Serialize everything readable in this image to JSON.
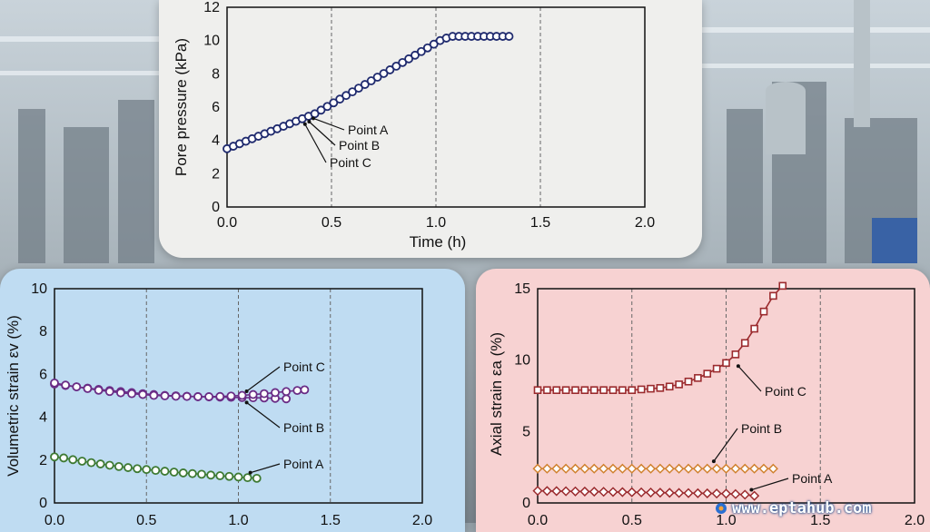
{
  "watermark": {
    "text": "www.eptahub.com"
  },
  "colors": {
    "navy": "#1f2a6e",
    "purple": "#6a2d86",
    "green": "#3e7a33",
    "darkred": "#9b2b2e",
    "orange": "#d0802d"
  },
  "chart_data": [
    {
      "type": "line",
      "title": "",
      "xlabel": "Time (h)",
      "ylabel": "Pore pressure (kPa)",
      "xlim": [
        0,
        2.0
      ],
      "ylim": [
        0,
        12
      ],
      "xticks": [
        "0.0",
        "0.5",
        "1.0",
        "1.5",
        "2.0"
      ],
      "yticks": [
        "0",
        "2",
        "4",
        "6",
        "8",
        "10",
        "12"
      ],
      "grid": "vertical dashed",
      "series": [
        {
          "marker": "circle",
          "color": "#1f2a6e",
          "x": [
            0.0,
            0.03,
            0.06,
            0.09,
            0.12,
            0.15,
            0.18,
            0.21,
            0.24,
            0.27,
            0.3,
            0.33,
            0.36,
            0.39,
            0.42,
            0.45,
            0.48,
            0.51,
            0.54,
            0.57,
            0.6,
            0.63,
            0.66,
            0.69,
            0.72,
            0.75,
            0.78,
            0.81,
            0.84,
            0.87,
            0.9,
            0.93,
            0.96,
            0.99,
            1.02,
            1.05,
            1.08,
            1.11,
            1.14,
            1.17,
            1.2,
            1.23,
            1.26,
            1.29,
            1.32,
            1.35
          ],
          "y": [
            3.5,
            3.65,
            3.8,
            3.95,
            4.1,
            4.25,
            4.4,
            4.55,
            4.7,
            4.85,
            5.0,
            5.15,
            5.3,
            5.45,
            5.6,
            5.82,
            6.04,
            6.26,
            6.48,
            6.7,
            6.92,
            7.14,
            7.36,
            7.58,
            7.8,
            8.02,
            8.24,
            8.46,
            8.68,
            8.9,
            9.12,
            9.34,
            9.56,
            9.78,
            10.0,
            10.15,
            10.25,
            10.25,
            10.25,
            10.25,
            10.25,
            10.25,
            10.25,
            10.25,
            10.25,
            10.25
          ]
        }
      ],
      "annotations": [
        {
          "text": "Point A",
          "x": 0.4,
          "y": 5.6
        },
        {
          "text": "Point B",
          "x": 0.38,
          "y": 5.4
        },
        {
          "text": "Point C",
          "x": 0.36,
          "y": 5.25
        }
      ]
    },
    {
      "type": "line",
      "title": "",
      "xlabel": "",
      "ylabel": "Volumetric strain εv (%)",
      "xlim": [
        0,
        2.0
      ],
      "ylim": [
        0,
        10
      ],
      "xticks": [
        "0.0",
        "0.5",
        "1.0",
        "1.5",
        "2.0"
      ],
      "yticks": [
        "0",
        "2",
        "4",
        "6",
        "8",
        "10"
      ],
      "grid": "vertical dashed",
      "series": [
        {
          "marker": "circle",
          "color": "#3e7a33",
          "x": [
            0.0,
            0.05,
            0.1,
            0.15,
            0.2,
            0.25,
            0.3,
            0.35,
            0.4,
            0.45,
            0.5,
            0.55,
            0.6,
            0.65,
            0.7,
            0.75,
            0.8,
            0.85,
            0.9,
            0.95,
            1.0,
            1.05,
            1.1
          ],
          "y": [
            2.15,
            2.1,
            2.02,
            1.95,
            1.88,
            1.82,
            1.76,
            1.7,
            1.65,
            1.6,
            1.56,
            1.52,
            1.48,
            1.44,
            1.4,
            1.37,
            1.34,
            1.3,
            1.27,
            1.24,
            1.21,
            1.18,
            1.15
          ]
        },
        {
          "marker": "circle",
          "color": "#6a2d86",
          "x": [
            0.0,
            0.06,
            0.12,
            0.18,
            0.24,
            0.3,
            0.36,
            0.42,
            0.48,
            0.54,
            0.6,
            0.66,
            0.72,
            0.78,
            0.84,
            0.9,
            0.96,
            1.02,
            1.08,
            1.14,
            1.2,
            1.26
          ],
          "y": [
            5.55,
            5.48,
            5.42,
            5.36,
            5.3,
            5.25,
            5.2,
            5.15,
            5.1,
            5.06,
            5.02,
            5.0,
            4.98,
            4.96,
            4.95,
            4.94,
            4.93,
            4.92,
            4.91,
            4.9,
            4.88,
            4.86
          ]
        },
        {
          "marker": "circle",
          "color": "#6a2d86",
          "x": [
            0.0,
            0.06,
            0.12,
            0.18,
            0.24,
            0.3,
            0.36,
            0.42,
            0.48,
            0.54,
            0.6,
            0.66,
            0.72,
            0.78,
            0.84,
            0.9,
            0.96,
            1.02,
            1.08,
            1.14,
            1.2,
            1.26,
            1.32,
            1.36
          ],
          "y": [
            5.6,
            5.5,
            5.42,
            5.34,
            5.26,
            5.2,
            5.14,
            5.1,
            5.06,
            5.02,
            5.0,
            4.98,
            4.97,
            4.96,
            4.96,
            4.97,
            4.99,
            5.02,
            5.06,
            5.1,
            5.15,
            5.2,
            5.25,
            5.28
          ]
        }
      ],
      "annotations": [
        {
          "text": "Point C",
          "x": 1.03,
          "y": 5.0
        },
        {
          "text": "Point B",
          "x": 1.03,
          "y": 4.9
        },
        {
          "text": "Point A",
          "x": 1.05,
          "y": 1.2
        }
      ]
    },
    {
      "type": "line",
      "title": "",
      "xlabel": "",
      "ylabel": "Axial strain εa (%)",
      "xlim": [
        0,
        2.0
      ],
      "ylim": [
        0,
        15
      ],
      "xticks": [
        "0.0",
        "0.5",
        "1.0",
        "1.5",
        "2.0"
      ],
      "yticks": [
        "0",
        "5",
        "10",
        "15"
      ],
      "grid": "vertical dashed",
      "series": [
        {
          "marker": "square",
          "color": "#9b2b2e",
          "x": [
            0.0,
            0.05,
            0.1,
            0.15,
            0.2,
            0.25,
            0.3,
            0.35,
            0.4,
            0.45,
            0.5,
            0.55,
            0.6,
            0.65,
            0.7,
            0.75,
            0.8,
            0.85,
            0.9,
            0.95,
            1.0,
            1.05,
            1.1,
            1.15,
            1.2,
            1.25,
            1.3
          ],
          "y": [
            7.9,
            7.9,
            7.9,
            7.9,
            7.9,
            7.9,
            7.9,
            7.9,
            7.9,
            7.9,
            7.9,
            7.95,
            8.0,
            8.05,
            8.15,
            8.3,
            8.5,
            8.75,
            9.05,
            9.4,
            9.8,
            10.4,
            11.2,
            12.2,
            13.4,
            14.5,
            15.2
          ]
        },
        {
          "marker": "diamond",
          "color": "#d0802d",
          "x": [
            0.0,
            0.05,
            0.1,
            0.15,
            0.2,
            0.25,
            0.3,
            0.35,
            0.4,
            0.45,
            0.5,
            0.55,
            0.6,
            0.65,
            0.7,
            0.75,
            0.8,
            0.85,
            0.9,
            0.95,
            1.0,
            1.05,
            1.1,
            1.15,
            1.2,
            1.25
          ],
          "y": [
            2.4,
            2.4,
            2.4,
            2.4,
            2.4,
            2.4,
            2.4,
            2.4,
            2.4,
            2.4,
            2.4,
            2.4,
            2.4,
            2.4,
            2.4,
            2.4,
            2.4,
            2.4,
            2.4,
            2.4,
            2.4,
            2.4,
            2.4,
            2.4,
            2.4,
            2.4
          ]
        },
        {
          "marker": "diamond",
          "color": "#9b2b2e",
          "x": [
            0.0,
            0.05,
            0.1,
            0.15,
            0.2,
            0.25,
            0.3,
            0.35,
            0.4,
            0.45,
            0.5,
            0.55,
            0.6,
            0.65,
            0.7,
            0.75,
            0.8,
            0.85,
            0.9,
            0.95,
            1.0,
            1.05,
            1.1,
            1.15
          ],
          "y": [
            0.85,
            0.84,
            0.83,
            0.82,
            0.81,
            0.8,
            0.79,
            0.78,
            0.77,
            0.76,
            0.75,
            0.74,
            0.73,
            0.72,
            0.71,
            0.7,
            0.69,
            0.68,
            0.67,
            0.66,
            0.65,
            0.62,
            0.58,
            0.5
          ]
        }
      ],
      "annotations": [
        {
          "text": "Point C",
          "x": 1.05,
          "y": 9.9
        },
        {
          "text": "Point B",
          "x": 0.92,
          "y": 2.6
        },
        {
          "text": "Point A",
          "x": 1.12,
          "y": 0.6
        }
      ]
    }
  ]
}
